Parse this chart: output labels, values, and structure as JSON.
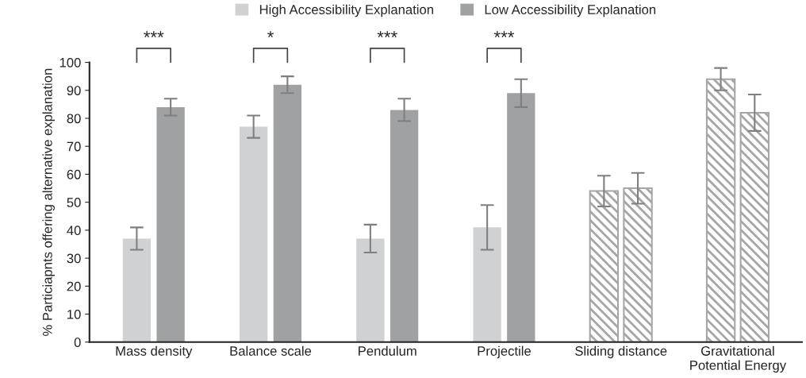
{
  "chart_data": {
    "type": "bar",
    "categories": [
      "Mass density",
      "Balance scale",
      "Pendulum",
      "Projectile",
      "Sliding distance",
      "Gravitational\nPotential Energy"
    ],
    "series": [
      {
        "name": "High Accessibility Explanation",
        "color": "#d0d1d3",
        "colors": [
          "#d0d1d3",
          "#d0d1d3",
          "#d0d1d3",
          "#d0d1d3",
          "#a6a6a6",
          "#a6a6a6"
        ],
        "values": [
          37,
          77,
          37,
          41,
          54,
          94
        ],
        "errors": [
          4,
          4,
          5,
          8,
          5.5,
          4
        ]
      },
      {
        "name": "Low Accessibility Explanation",
        "color": "#a0a1a3",
        "colors": [
          "#a0a1a3",
          "#a0a1a3",
          "#a0a1a3",
          "#a0a1a3",
          "#a6a6a6",
          "#a6a6a6"
        ],
        "values": [
          84,
          92,
          83,
          89,
          55,
          82
        ],
        "errors": [
          3,
          3,
          4,
          5,
          5.5,
          6.5
        ]
      }
    ],
    "ylabel": "% Particiapnts offering alternative explanation",
    "ylim": [
      0,
      100
    ],
    "yticks": [
      0,
      10,
      20,
      30,
      40,
      50,
      60,
      70,
      80,
      90,
      100
    ],
    "annotations": [
      "***",
      "*",
      "***",
      "***"
    ],
    "grid": false,
    "legend": "top"
  }
}
